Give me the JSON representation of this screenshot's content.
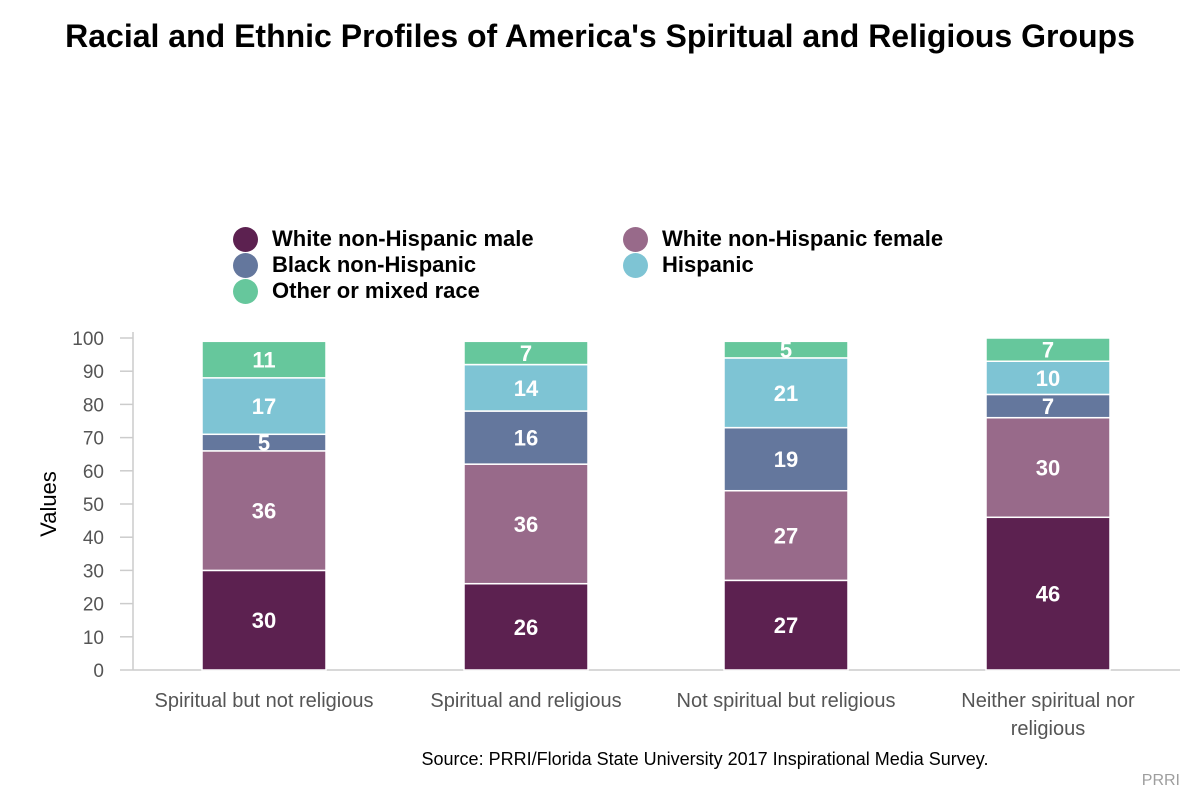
{
  "chart_data": {
    "type": "bar",
    "stacked": true,
    "title": "Racial and Ethnic Profiles of America's Spiritual and Religious Groups",
    "ylabel": "Values",
    "xlabel": "",
    "ylim": [
      0,
      100
    ],
    "yticks": [
      0,
      10,
      20,
      30,
      40,
      50,
      60,
      70,
      80,
      90,
      100
    ],
    "categories": [
      "Spiritual but not religious",
      "Spiritual and religious",
      "Not spiritual but religious",
      "Neither spiritual nor religious"
    ],
    "series": [
      {
        "name": "White non-Hispanic male",
        "color": "#5c2150",
        "values": [
          30,
          26,
          27,
          46
        ]
      },
      {
        "name": "White non-Hispanic female",
        "color": "#986a8a",
        "values": [
          36,
          36,
          27,
          30
        ]
      },
      {
        "name": "Black non-Hispanic",
        "color": "#64779d",
        "values": [
          5,
          16,
          19,
          7
        ]
      },
      {
        "name": "Hispanic",
        "color": "#7ec4d4",
        "values": [
          17,
          14,
          21,
          10
        ]
      },
      {
        "name": "Other or mixed race",
        "color": "#66c79c",
        "values": [
          11,
          7,
          5,
          7
        ]
      }
    ],
    "legend_position": "top",
    "grid": false
  },
  "source": "Source: PRRI/Florida State University 2017 Inspirational Media Survey.",
  "credit": "PRRI"
}
